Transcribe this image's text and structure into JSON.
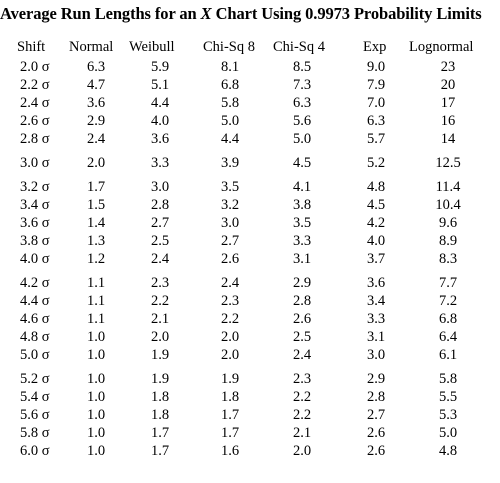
{
  "title": {
    "prefix": "Average Run Lengths for an ",
    "x": "X",
    "suffix": " Chart Using 0.9973 Probability Limits"
  },
  "columns": [
    "Shift",
    "Normal",
    "Weibull",
    "Chi-Sq 8",
    "Chi-Sq 4",
    "Exp",
    "Lognormal"
  ],
  "rows": [
    [
      "2.0 σ",
      "6.3",
      "5.9",
      "8.1",
      "8.5",
      "9.0",
      "23"
    ],
    [
      "2.2 σ",
      "4.7",
      "5.1",
      "6.8",
      "7.3",
      "7.9",
      "20"
    ],
    [
      "2.4 σ",
      "3.6",
      "4.4",
      "5.8",
      "6.3",
      "7.0",
      "17"
    ],
    [
      "2.6 σ",
      "2.9",
      "4.0",
      "5.0",
      "5.6",
      "6.3",
      "16"
    ],
    [
      "2.8 σ",
      "2.4",
      "3.6",
      "4.4",
      "5.0",
      "5.7",
      "14"
    ],
    [
      "3.0 σ",
      "2.0",
      "3.3",
      "3.9",
      "4.5",
      "5.2",
      "12.5"
    ],
    [
      "3.2 σ",
      "1.7",
      "3.0",
      "3.5",
      "4.1",
      "4.8",
      "11.4"
    ],
    [
      "3.4 σ",
      "1.5",
      "2.8",
      "3.2",
      "3.8",
      "4.5",
      "10.4"
    ],
    [
      "3.6 σ",
      "1.4",
      "2.7",
      "3.0",
      "3.5",
      "4.2",
      "9.6"
    ],
    [
      "3.8 σ",
      "1.3",
      "2.5",
      "2.7",
      "3.3",
      "4.0",
      "8.9"
    ],
    [
      "4.0 σ",
      "1.2",
      "2.4",
      "2.6",
      "3.1",
      "3.7",
      "8.3"
    ],
    [
      "4.2 σ",
      "1.1",
      "2.3",
      "2.4",
      "2.9",
      "3.6",
      "7.7"
    ],
    [
      "4.4 σ",
      "1.1",
      "2.2",
      "2.3",
      "2.8",
      "3.4",
      "7.2"
    ],
    [
      "4.6 σ",
      "1.1",
      "2.1",
      "2.2",
      "2.6",
      "3.3",
      "6.8"
    ],
    [
      "4.8 σ",
      "1.0",
      "2.0",
      "2.0",
      "2.5",
      "3.1",
      "6.4"
    ],
    [
      "5.0 σ",
      "1.0",
      "1.9",
      "2.0",
      "2.4",
      "3.0",
      "6.1"
    ],
    [
      "5.2 σ",
      "1.0",
      "1.9",
      "1.9",
      "2.3",
      "2.9",
      "5.8"
    ],
    [
      "5.4 σ",
      "1.0",
      "1.8",
      "1.8",
      "2.2",
      "2.8",
      "5.5"
    ],
    [
      "5.6 σ",
      "1.0",
      "1.8",
      "1.7",
      "2.2",
      "2.7",
      "5.3"
    ],
    [
      "5.8 σ",
      "1.0",
      "1.7",
      "1.7",
      "2.1",
      "2.6",
      "5.0"
    ],
    [
      "6.0 σ",
      "1.0",
      "1.7",
      "1.6",
      "2.0",
      "2.6",
      "4.8"
    ]
  ]
}
